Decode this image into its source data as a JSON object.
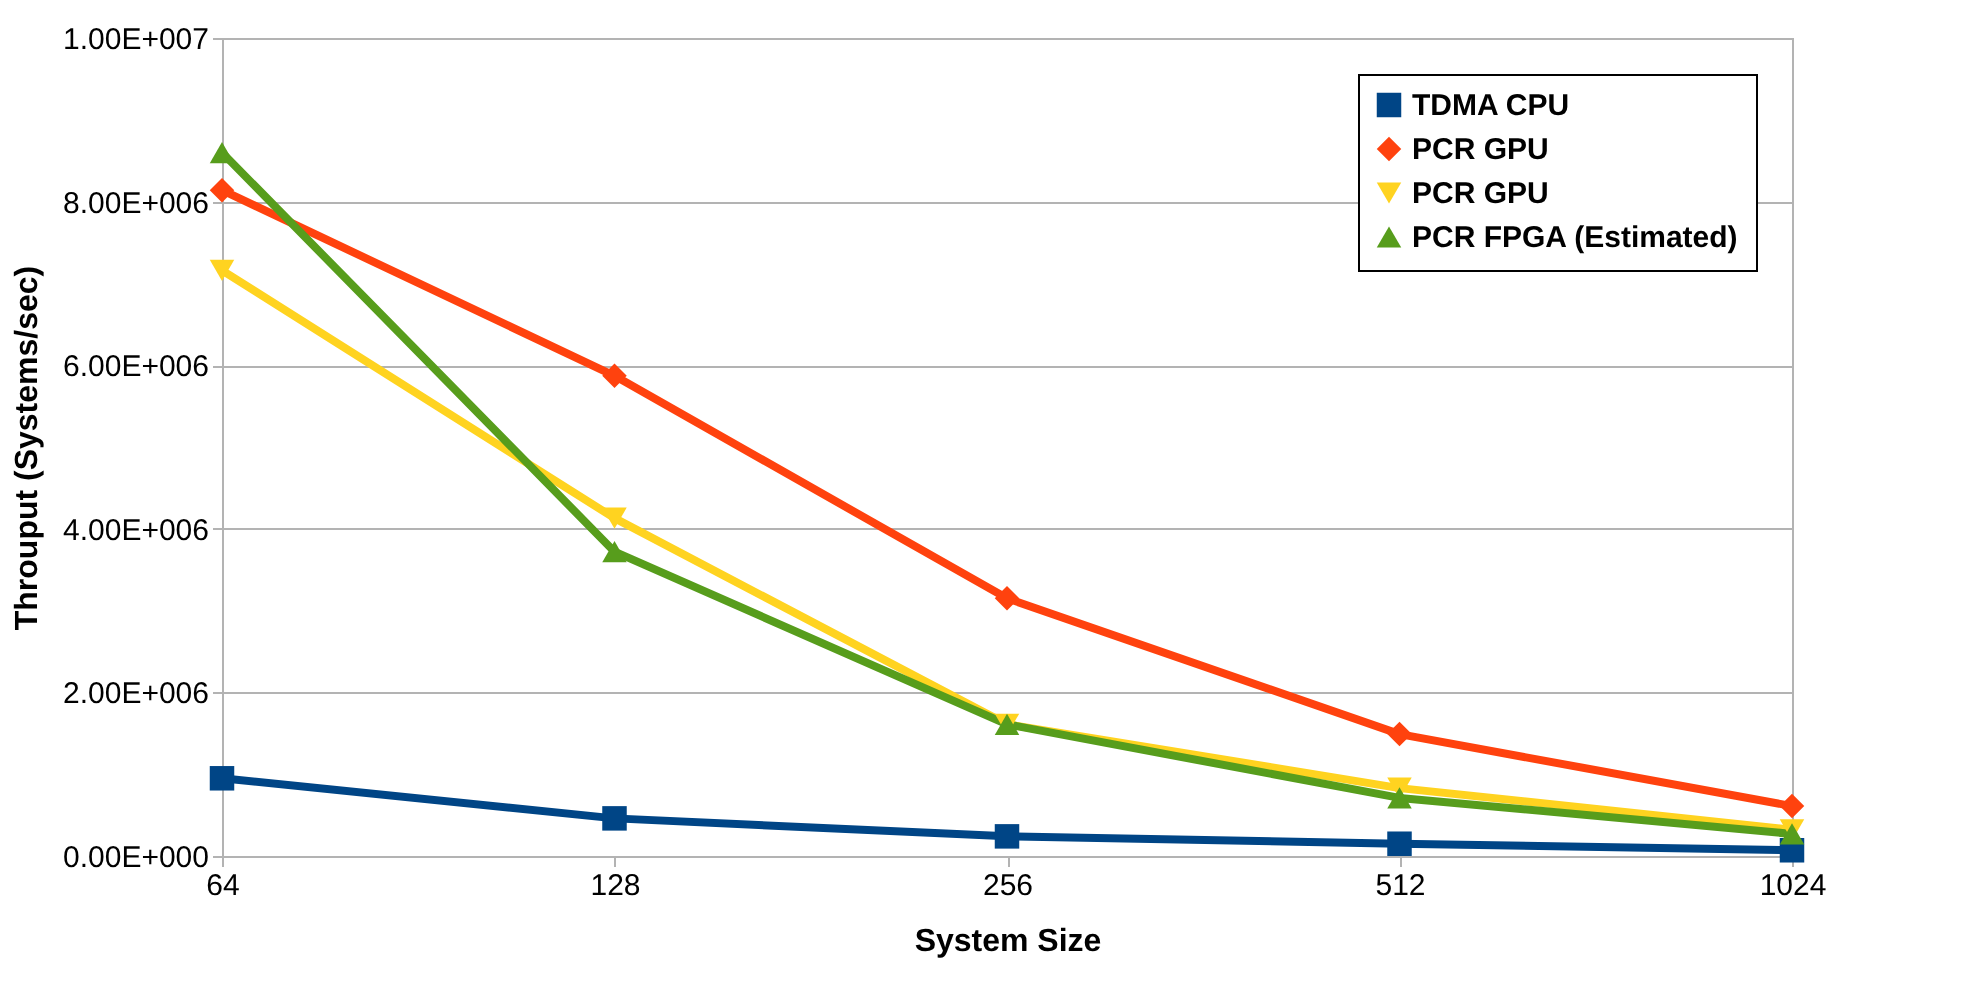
{
  "chart_data": {
    "type": "line",
    "xlabel": "System Size",
    "ylabel": "Throuput (Systems/sec)",
    "categories": [
      "64",
      "128",
      "256",
      "512",
      "1024"
    ],
    "ylim": [
      0,
      10000000
    ],
    "yticks": [
      {
        "value": 0,
        "label": "0.00E+000"
      },
      {
        "value": 2000000,
        "label": "2.00E+006"
      },
      {
        "value": 4000000,
        "label": "4.00E+006"
      },
      {
        "value": 6000000,
        "label": "6.00E+006"
      },
      {
        "value": 8000000,
        "label": "8.00E+006"
      },
      {
        "value": 10000000,
        "label": "1.00E+007"
      }
    ],
    "grid": "y",
    "legend": "top right",
    "line_style": "solid",
    "series": [
      {
        "name": "TDMA CPU",
        "color": "#004586",
        "marker": "square",
        "values": [
          950000,
          460000,
          240000,
          150000,
          70000
        ]
      },
      {
        "name": "PCR GPU",
        "color": "#ff420e",
        "marker": "diamond",
        "values": [
          8140000,
          5870000,
          3150000,
          1490000,
          610000
        ]
      },
      {
        "name": "PCR GPU",
        "color": "#ffd320",
        "marker": "triangle-down",
        "values": [
          7160000,
          4130000,
          1610000,
          830000,
          320000
        ]
      },
      {
        "name": "PCR FPGA (Estimated)",
        "color": "#579d1c",
        "marker": "triangle",
        "values": [
          8600000,
          3720000,
          1610000,
          710000,
          270000
        ]
      }
    ]
  }
}
